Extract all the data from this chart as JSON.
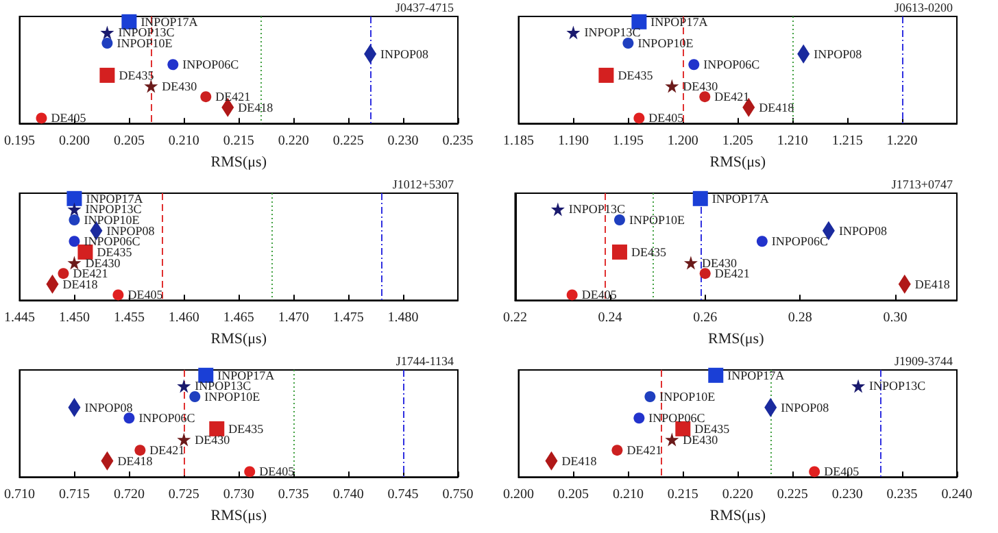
{
  "chart_data": [
    {
      "type": "scatter",
      "orientation": "horizontal",
      "title": "J0437-4715",
      "xlabel": "RMS(μs)",
      "categories": [
        null,
        null,
        null,
        null,
        null,
        null,
        null,
        null,
        null,
        null
      ],
      "xlim": [
        0.195,
        0.235
      ],
      "xticks": [
        0.195,
        {
          "value": 0.2,
          "label": "0.200"
        },
        0.205,
        {
          "value": 0.21,
          "label": "0.210"
        },
        0.215,
        {
          "value": 0.22,
          "label": "0.220"
        },
        0.225,
        {
          "value": 0.23,
          "label": "0.230"
        },
        0.235
      ],
      "tick_labels": "x",
      "grid": false,
      "legend": false,
      "series": [
        {
          "name": "INPOP17A",
          "color": "#1a3fd6",
          "marker": "square",
          "values": [
            0.205,
            null,
            null,
            null,
            null,
            null,
            null,
            null,
            null,
            null
          ]
        },
        {
          "name": "INPOP13C",
          "color": "#1a1a6e",
          "marker": "star",
          "values": [
            null,
            0.203,
            null,
            null,
            null,
            null,
            null,
            null,
            null,
            null
          ]
        },
        {
          "name": "INPOP10E",
          "color": "#1f3fbf",
          "marker": "circle",
          "values": [
            null,
            null,
            0.203,
            null,
            null,
            null,
            null,
            null,
            null,
            null
          ]
        },
        {
          "name": "INPOP08",
          "color": "#1a2a9e",
          "marker": "diamond",
          "values": [
            null,
            null,
            null,
            0.227,
            null,
            null,
            null,
            null,
            null,
            null
          ]
        },
        {
          "name": "INPOP06C",
          "color": "#2233cc",
          "marker": "circle",
          "values": [
            null,
            null,
            null,
            null,
            0.209,
            null,
            null,
            null,
            null,
            null
          ]
        },
        {
          "name": "DE435",
          "color": "#d42020",
          "marker": "square",
          "values": [
            null,
            null,
            null,
            null,
            null,
            0.203,
            null,
            null,
            null,
            null
          ]
        },
        {
          "name": "DE430",
          "color": "#6b1a1a",
          "marker": "star",
          "values": [
            null,
            null,
            null,
            null,
            null,
            null,
            0.207,
            null,
            null,
            null
          ]
        },
        {
          "name": "DE421",
          "color": "#cc2020",
          "marker": "circle",
          "values": [
            null,
            null,
            null,
            null,
            null,
            null,
            null,
            0.212,
            null,
            null
          ]
        },
        {
          "name": "DE418",
          "color": "#b01818",
          "marker": "diamond",
          "values": [
            null,
            null,
            null,
            null,
            null,
            null,
            null,
            null,
            0.214,
            null
          ]
        },
        {
          "name": "DE405",
          "color": "#e02020",
          "marker": "circle",
          "values": [
            null,
            null,
            null,
            null,
            null,
            null,
            null,
            null,
            null,
            0.197
          ]
        }
      ],
      "ref_lines": [
        {
          "axis": "x",
          "value": 0.207,
          "color": "#e03030",
          "line_style": "dashed"
        },
        {
          "axis": "x",
          "value": 0.217,
          "color": "#40a040",
          "line_style": "dotted"
        },
        {
          "axis": "x",
          "value": 0.227,
          "color": "#3030e0",
          "line_style": "dashdot"
        }
      ]
    },
    {
      "type": "scatter",
      "orientation": "horizontal",
      "title": "J0613-0200",
      "xlabel": "RMS(μs)",
      "categories": [
        null,
        null,
        null,
        null,
        null,
        null,
        null,
        null,
        null,
        null
      ],
      "xlim": [
        1.185,
        1.225
      ],
      "xticks": [
        1.185,
        {
          "value": 1.19,
          "label": "1.190"
        },
        1.195,
        {
          "value": 1.2,
          "label": "1.200"
        },
        1.205,
        {
          "value": 1.21,
          "label": "1.210"
        },
        1.215,
        {
          "value": 1.22,
          "label": "1.220"
        }
      ],
      "tick_labels": "x",
      "grid": false,
      "legend": false,
      "series": [
        {
          "name": "INPOP17A",
          "color": "#1a3fd6",
          "marker": "square",
          "values": [
            1.196,
            null,
            null,
            null,
            null,
            null,
            null,
            null,
            null,
            null
          ]
        },
        {
          "name": "INPOP13C",
          "color": "#1a1a6e",
          "marker": "star",
          "values": [
            null,
            1.19,
            null,
            null,
            null,
            null,
            null,
            null,
            null,
            null
          ]
        },
        {
          "name": "INPOP10E",
          "color": "#1f3fbf",
          "marker": "circle",
          "values": [
            null,
            null,
            1.195,
            null,
            null,
            null,
            null,
            null,
            null,
            null
          ]
        },
        {
          "name": "INPOP08",
          "color": "#1a2a9e",
          "marker": "diamond",
          "values": [
            null,
            null,
            null,
            1.211,
            null,
            null,
            null,
            null,
            null,
            null
          ]
        },
        {
          "name": "INPOP06C",
          "color": "#2233cc",
          "marker": "circle",
          "values": [
            null,
            null,
            null,
            null,
            1.201,
            null,
            null,
            null,
            null,
            null
          ]
        },
        {
          "name": "DE435",
          "color": "#d42020",
          "marker": "square",
          "values": [
            null,
            null,
            null,
            null,
            null,
            1.193,
            null,
            null,
            null,
            null
          ]
        },
        {
          "name": "DE430",
          "color": "#6b1a1a",
          "marker": "star",
          "values": [
            null,
            null,
            null,
            null,
            null,
            null,
            1.199,
            null,
            null,
            null
          ]
        },
        {
          "name": "DE421",
          "color": "#cc2020",
          "marker": "circle",
          "values": [
            null,
            null,
            null,
            null,
            null,
            null,
            null,
            1.202,
            null,
            null
          ]
        },
        {
          "name": "DE418",
          "color": "#b01818",
          "marker": "diamond",
          "values": [
            null,
            null,
            null,
            null,
            null,
            null,
            null,
            null,
            1.206,
            null
          ]
        },
        {
          "name": "DE405",
          "color": "#e02020",
          "marker": "circle",
          "values": [
            null,
            null,
            null,
            null,
            null,
            null,
            null,
            null,
            null,
            1.196
          ]
        }
      ],
      "ref_lines": [
        {
          "axis": "x",
          "value": 1.2,
          "color": "#e03030",
          "line_style": "dashed"
        },
        {
          "axis": "x",
          "value": 1.21,
          "color": "#40a040",
          "line_style": "dotted"
        },
        {
          "axis": "x",
          "value": 1.22,
          "color": "#3030e0",
          "line_style": "dashdot"
        }
      ]
    },
    {
      "type": "scatter",
      "orientation": "horizontal",
      "title": "J1012+5307",
      "xlabel": "RMS(μs)",
      "categories": [
        null,
        null,
        null,
        null,
        null,
        null,
        null,
        null,
        null,
        null
      ],
      "xlim": [
        1.445,
        1.485
      ],
      "xticks": [
        1.445,
        {
          "value": 1.45,
          "label": "1.450"
        },
        1.455,
        {
          "value": 1.46,
          "label": "1.460"
        },
        1.465,
        {
          "value": 1.47,
          "label": "1.470"
        },
        1.475,
        {
          "value": 1.48,
          "label": "1.480"
        }
      ],
      "tick_labels": "x",
      "grid": false,
      "legend": false,
      "series": [
        {
          "name": "INPOP17A",
          "color": "#1a3fd6",
          "marker": "square",
          "values": [
            1.45,
            null,
            null,
            null,
            null,
            null,
            null,
            null,
            null,
            null
          ]
        },
        {
          "name": "INPOP13C",
          "color": "#1a1a6e",
          "marker": "star",
          "values": [
            null,
            1.45,
            null,
            null,
            null,
            null,
            null,
            null,
            null,
            null
          ]
        },
        {
          "name": "INPOP10E",
          "color": "#1f3fbf",
          "marker": "circle",
          "values": [
            null,
            null,
            1.45,
            null,
            null,
            null,
            null,
            null,
            null,
            null
          ]
        },
        {
          "name": "INPOP08",
          "color": "#1a2a9e",
          "marker": "diamond",
          "values": [
            null,
            null,
            null,
            1.452,
            null,
            null,
            null,
            null,
            null,
            null
          ]
        },
        {
          "name": "INPOP06C",
          "color": "#2233cc",
          "marker": "circle",
          "values": [
            null,
            null,
            null,
            null,
            1.45,
            null,
            null,
            null,
            null,
            null
          ]
        },
        {
          "name": "DE435",
          "color": "#d42020",
          "marker": "square",
          "values": [
            null,
            null,
            null,
            null,
            null,
            1.451,
            null,
            null,
            null,
            null
          ]
        },
        {
          "name": "DE430",
          "color": "#6b1a1a",
          "marker": "star",
          "values": [
            null,
            null,
            null,
            null,
            null,
            null,
            1.45,
            null,
            null,
            null
          ]
        },
        {
          "name": "DE421",
          "color": "#cc2020",
          "marker": "circle",
          "values": [
            null,
            null,
            null,
            null,
            null,
            null,
            null,
            1.449,
            null,
            null
          ]
        },
        {
          "name": "DE418",
          "color": "#b01818",
          "marker": "diamond",
          "values": [
            null,
            null,
            null,
            null,
            null,
            null,
            null,
            null,
            1.448,
            null
          ]
        },
        {
          "name": "DE405",
          "color": "#e02020",
          "marker": "circle",
          "values": [
            null,
            null,
            null,
            null,
            null,
            null,
            null,
            null,
            null,
            1.454
          ]
        }
      ],
      "ref_lines": [
        {
          "axis": "x",
          "value": 1.458,
          "color": "#e03030",
          "line_style": "dashed"
        },
        {
          "axis": "x",
          "value": 1.468,
          "color": "#40a040",
          "line_style": "dotted"
        },
        {
          "axis": "x",
          "value": 1.478,
          "color": "#3030e0",
          "line_style": "dashdot"
        }
      ]
    },
    {
      "type": "scatter",
      "orientation": "horizontal",
      "title": "J1713+0747",
      "xlabel": "RMS(μs)",
      "categories": [
        null,
        null,
        null,
        null,
        null,
        null,
        null,
        null,
        null,
        null
      ],
      "xlim": [
        0.22,
        0.313
      ],
      "xticks": [
        0.22,
        0.24,
        0.26,
        0.28,
        {
          "value": 0.3,
          "label": "0.30"
        }
      ],
      "tick_labels": "x",
      "grid": false,
      "legend": false,
      "series": [
        {
          "name": "INPOP17A",
          "color": "#1a3fd6",
          "marker": "square",
          "values": [
            0.259,
            null,
            null,
            null,
            null,
            null,
            null,
            null,
            null,
            null
          ]
        },
        {
          "name": "INPOP13C",
          "color": "#1a1a6e",
          "marker": "star",
          "values": [
            null,
            0.229,
            null,
            null,
            null,
            null,
            null,
            null,
            null,
            null
          ]
        },
        {
          "name": "INPOP10E",
          "color": "#1f3fbf",
          "marker": "circle",
          "values": [
            null,
            null,
            0.242,
            null,
            null,
            null,
            null,
            null,
            null,
            null
          ]
        },
        {
          "name": "INPOP08",
          "color": "#1a2a9e",
          "marker": "diamond",
          "values": [
            null,
            null,
            null,
            0.286,
            null,
            null,
            null,
            null,
            null,
            null
          ]
        },
        {
          "name": "INPOP06C",
          "color": "#2233cc",
          "marker": "circle",
          "values": [
            null,
            null,
            null,
            null,
            0.272,
            null,
            null,
            null,
            null,
            null
          ]
        },
        {
          "name": "DE435",
          "color": "#d42020",
          "marker": "square",
          "values": [
            null,
            null,
            null,
            null,
            null,
            0.242,
            null,
            null,
            null,
            null
          ]
        },
        {
          "name": "DE430",
          "color": "#6b1a1a",
          "marker": "star",
          "values": [
            null,
            null,
            null,
            null,
            null,
            null,
            0.257,
            null,
            null,
            null
          ]
        },
        {
          "name": "DE421",
          "color": "#cc2020",
          "marker": "circle",
          "values": [
            null,
            null,
            null,
            null,
            null,
            null,
            null,
            0.26,
            null,
            null
          ]
        },
        {
          "name": "DE418",
          "color": "#b01818",
          "marker": "diamond",
          "values": [
            null,
            null,
            null,
            null,
            null,
            null,
            null,
            null,
            0.302,
            null
          ]
        },
        {
          "name": "DE405",
          "color": "#e02020",
          "marker": "circle",
          "values": [
            null,
            null,
            null,
            null,
            null,
            null,
            null,
            null,
            null,
            0.232
          ]
        }
      ],
      "ref_lines": [
        {
          "axis": "x",
          "value": 0.239,
          "color": "#e03030",
          "line_style": "dashed"
        },
        {
          "axis": "x",
          "value": 0.249,
          "color": "#40a040",
          "line_style": "dotted"
        },
        {
          "axis": "x",
          "value": 0.259,
          "color": "#3030e0",
          "line_style": "dashdot"
        }
      ]
    },
    {
      "type": "scatter",
      "orientation": "horizontal",
      "title": "J1744-1134",
      "xlabel": "RMS(μs)",
      "categories": [
        null,
        null,
        null,
        null,
        null,
        null,
        null,
        null,
        null,
        null
      ],
      "xlim": [
        0.71,
        0.75
      ],
      "xticks": [
        {
          "value": 0.71,
          "label": "0.710"
        },
        0.715,
        {
          "value": 0.72,
          "label": "0.720"
        },
        0.725,
        {
          "value": 0.73,
          "label": "0.730"
        },
        0.735,
        {
          "value": 0.74,
          "label": "0.740"
        },
        0.745,
        {
          "value": 0.75,
          "label": "0.750"
        }
      ],
      "tick_labels": "x",
      "grid": false,
      "legend": false,
      "series": [
        {
          "name": "INPOP17A",
          "color": "#1a3fd6",
          "marker": "square",
          "values": [
            0.727,
            null,
            null,
            null,
            null,
            null,
            null,
            null,
            null,
            null
          ]
        },
        {
          "name": "INPOP13C",
          "color": "#1a1a6e",
          "marker": "star",
          "values": [
            null,
            0.725,
            null,
            null,
            null,
            null,
            null,
            null,
            null,
            null
          ]
        },
        {
          "name": "INPOP10E",
          "color": "#1f3fbf",
          "marker": "circle",
          "values": [
            null,
            null,
            0.726,
            null,
            null,
            null,
            null,
            null,
            null,
            null
          ]
        },
        {
          "name": "INPOP08",
          "color": "#1a2a9e",
          "marker": "diamond",
          "values": [
            null,
            null,
            null,
            0.715,
            null,
            null,
            null,
            null,
            null,
            null
          ]
        },
        {
          "name": "INPOP06C",
          "color": "#2233cc",
          "marker": "circle",
          "values": [
            null,
            null,
            null,
            null,
            0.72,
            null,
            null,
            null,
            null,
            null
          ]
        },
        {
          "name": "DE435",
          "color": "#d42020",
          "marker": "square",
          "values": [
            null,
            null,
            null,
            null,
            null,
            0.728,
            null,
            null,
            null,
            null
          ]
        },
        {
          "name": "DE430",
          "color": "#6b1a1a",
          "marker": "star",
          "values": [
            null,
            null,
            null,
            null,
            null,
            null,
            0.725,
            null,
            null,
            null
          ]
        },
        {
          "name": "DE421",
          "color": "#cc2020",
          "marker": "circle",
          "values": [
            null,
            null,
            null,
            null,
            null,
            null,
            null,
            0.721,
            null,
            null
          ]
        },
        {
          "name": "DE418",
          "color": "#b01818",
          "marker": "diamond",
          "values": [
            null,
            null,
            null,
            null,
            null,
            null,
            null,
            null,
            0.718,
            null
          ]
        },
        {
          "name": "DE405",
          "color": "#e02020",
          "marker": "circle",
          "values": [
            null,
            null,
            null,
            null,
            null,
            null,
            null,
            null,
            null,
            0.731
          ]
        }
      ],
      "ref_lines": [
        {
          "axis": "x",
          "value": 0.725,
          "color": "#e03030",
          "line_style": "dashed"
        },
        {
          "axis": "x",
          "value": 0.735,
          "color": "#40a040",
          "line_style": "dotted"
        },
        {
          "axis": "x",
          "value": 0.745,
          "color": "#3030e0",
          "line_style": "dashdot"
        }
      ]
    },
    {
      "type": "scatter",
      "orientation": "horizontal",
      "title": "J1909-3744",
      "xlabel": "RMS(μs)",
      "categories": [
        null,
        null,
        null,
        null,
        null,
        null,
        null,
        null,
        null,
        null
      ],
      "xlim": [
        0.2,
        0.24
      ],
      "xticks": [
        {
          "value": 0.2,
          "label": "0.200"
        },
        0.205,
        {
          "value": 0.21,
          "label": "0.210"
        },
        0.215,
        {
          "value": 0.22,
          "label": "0.220"
        },
        0.225,
        {
          "value": 0.23,
          "label": "0.230"
        },
        0.235,
        {
          "value": 0.24,
          "label": "0.240"
        }
      ],
      "tick_labels": "x",
      "grid": false,
      "legend": false,
      "series": [
        {
          "name": "INPOP17A",
          "color": "#1a3fd6",
          "marker": "square",
          "values": [
            0.218,
            null,
            null,
            null,
            null,
            null,
            null,
            null,
            null,
            null
          ]
        },
        {
          "name": "INPOP13C",
          "color": "#1a1a6e",
          "marker": "star",
          "values": [
            null,
            0.231,
            null,
            null,
            null,
            null,
            null,
            null,
            null,
            null
          ]
        },
        {
          "name": "INPOP10E",
          "color": "#1f3fbf",
          "marker": "circle",
          "values": [
            null,
            null,
            0.212,
            null,
            null,
            null,
            null,
            null,
            null,
            null
          ]
        },
        {
          "name": "INPOP08",
          "color": "#1a2a9e",
          "marker": "diamond",
          "values": [
            null,
            null,
            null,
            0.223,
            null,
            null,
            null,
            null,
            null,
            null
          ]
        },
        {
          "name": "INPOP06C",
          "color": "#2233cc",
          "marker": "circle",
          "values": [
            null,
            null,
            null,
            null,
            0.211,
            null,
            null,
            null,
            null,
            null
          ]
        },
        {
          "name": "DE435",
          "color": "#d42020",
          "marker": "square",
          "values": [
            null,
            null,
            null,
            null,
            null,
            0.215,
            null,
            null,
            null,
            null
          ]
        },
        {
          "name": "DE430",
          "color": "#6b1a1a",
          "marker": "star",
          "values": [
            null,
            null,
            null,
            null,
            null,
            null,
            0.214,
            null,
            null,
            null
          ]
        },
        {
          "name": "DE421",
          "color": "#cc2020",
          "marker": "circle",
          "values": [
            null,
            null,
            null,
            null,
            null,
            null,
            null,
            0.209,
            null,
            null
          ]
        },
        {
          "name": "DE418",
          "color": "#b01818",
          "marker": "diamond",
          "values": [
            null,
            null,
            null,
            null,
            null,
            null,
            null,
            null,
            0.203,
            null
          ]
        },
        {
          "name": "DE405",
          "color": "#e02020",
          "marker": "circle",
          "values": [
            null,
            null,
            null,
            null,
            null,
            null,
            null,
            null,
            null,
            0.227
          ]
        }
      ],
      "ref_lines": [
        {
          "axis": "x",
          "value": 0.213,
          "color": "#e03030",
          "line_style": "dashed"
        },
        {
          "axis": "x",
          "value": 0.223,
          "color": "#40a040",
          "line_style": "dotted"
        },
        {
          "axis": "x",
          "value": 0.233,
          "color": "#3030e0",
          "line_style": "dashdot"
        }
      ]
    }
  ]
}
